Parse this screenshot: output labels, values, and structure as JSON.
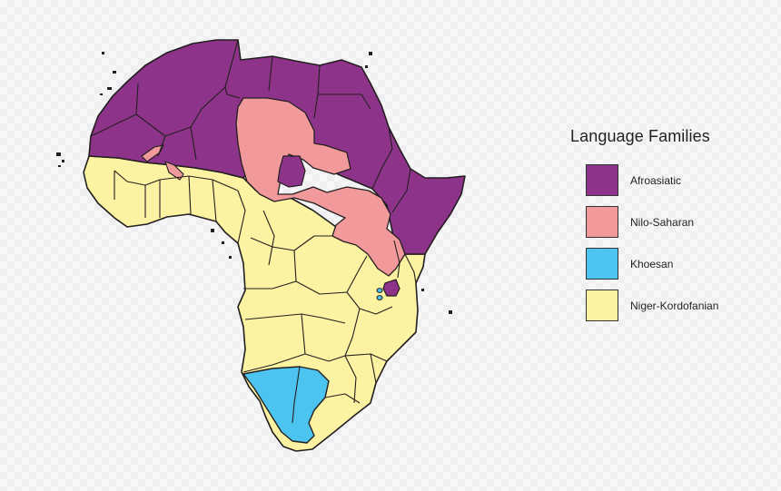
{
  "legend": {
    "title": "Language Families",
    "items": [
      {
        "name": "afroasiatic",
        "label": "Afroasiatic",
        "color": "#8e338a"
      },
      {
        "name": "nilo-saharan",
        "label": "Nilo-Saharan",
        "color": "#f29a9b"
      },
      {
        "name": "khoesan",
        "label": "Khoesan",
        "color": "#4dc4f0"
      },
      {
        "name": "niger-kordofanian",
        "label": "Niger-Kordofanian",
        "color": "#fbf3a1"
      }
    ]
  },
  "map": {
    "region": "Africa",
    "border_color": "#231f20"
  }
}
